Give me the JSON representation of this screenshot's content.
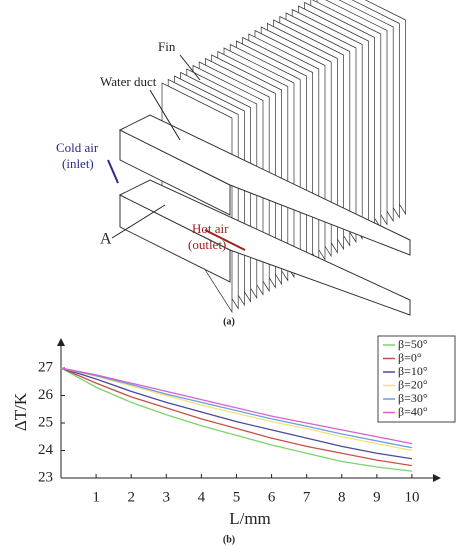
{
  "diagram": {
    "labels": {
      "fin": "Fin",
      "water_duct": "Water duct",
      "cold_air": [
        "Cold air",
        "(inlet)"
      ],
      "hot_air": [
        "Hot air",
        "(outlet)"
      ],
      "a": "A"
    },
    "caption": "(a)"
  },
  "chart_data": {
    "type": "line",
    "caption": "(b)",
    "x_label": "L/mm",
    "y_label": "ΔT/K",
    "x": [
      0,
      1,
      2,
      3,
      4,
      5,
      6,
      7,
      8,
      9,
      10
    ],
    "series": [
      {
        "name": "β=50°",
        "color": "#7ed36a",
        "values": [
          27,
          26.3,
          25.75,
          25.3,
          24.9,
          24.55,
          24.2,
          23.9,
          23.6,
          23.4,
          23.25
        ]
      },
      {
        "name": "β=0°",
        "color": "#c8504a",
        "values": [
          27,
          26.45,
          25.95,
          25.55,
          25.15,
          24.8,
          24.45,
          24.15,
          23.9,
          23.65,
          23.45
        ]
      },
      {
        "name": "β=10°",
        "color": "#4a4a9a",
        "values": [
          27,
          26.6,
          26.15,
          25.75,
          25.4,
          25.05,
          24.75,
          24.45,
          24.15,
          23.9,
          23.7
        ]
      },
      {
        "name": "β=20°",
        "color": "#f2e27a",
        "values": [
          27,
          26.7,
          26.35,
          26,
          25.65,
          25.35,
          25.05,
          24.8,
          24.5,
          24.25,
          24
        ]
      },
      {
        "name": "β=30°",
        "color": "#6a9ee0",
        "values": [
          27,
          26.72,
          26.4,
          26.05,
          25.75,
          25.45,
          25.15,
          24.88,
          24.6,
          24.35,
          24.1
        ]
      },
      {
        "name": "β=40°",
        "color": "#d860d0",
        "values": [
          27,
          26.75,
          26.45,
          26.15,
          25.85,
          25.55,
          25.25,
          25,
          24.75,
          24.5,
          24.25
        ]
      }
    ],
    "xlim": [
      0,
      10.6
    ],
    "ylim": [
      23,
      27.8
    ],
    "xticks": [
      1,
      2,
      3,
      4,
      5,
      6,
      7,
      8,
      9,
      10
    ],
    "yticks": [
      23,
      24,
      25,
      26,
      27
    ],
    "legend": "upper right",
    "grid": false
  }
}
